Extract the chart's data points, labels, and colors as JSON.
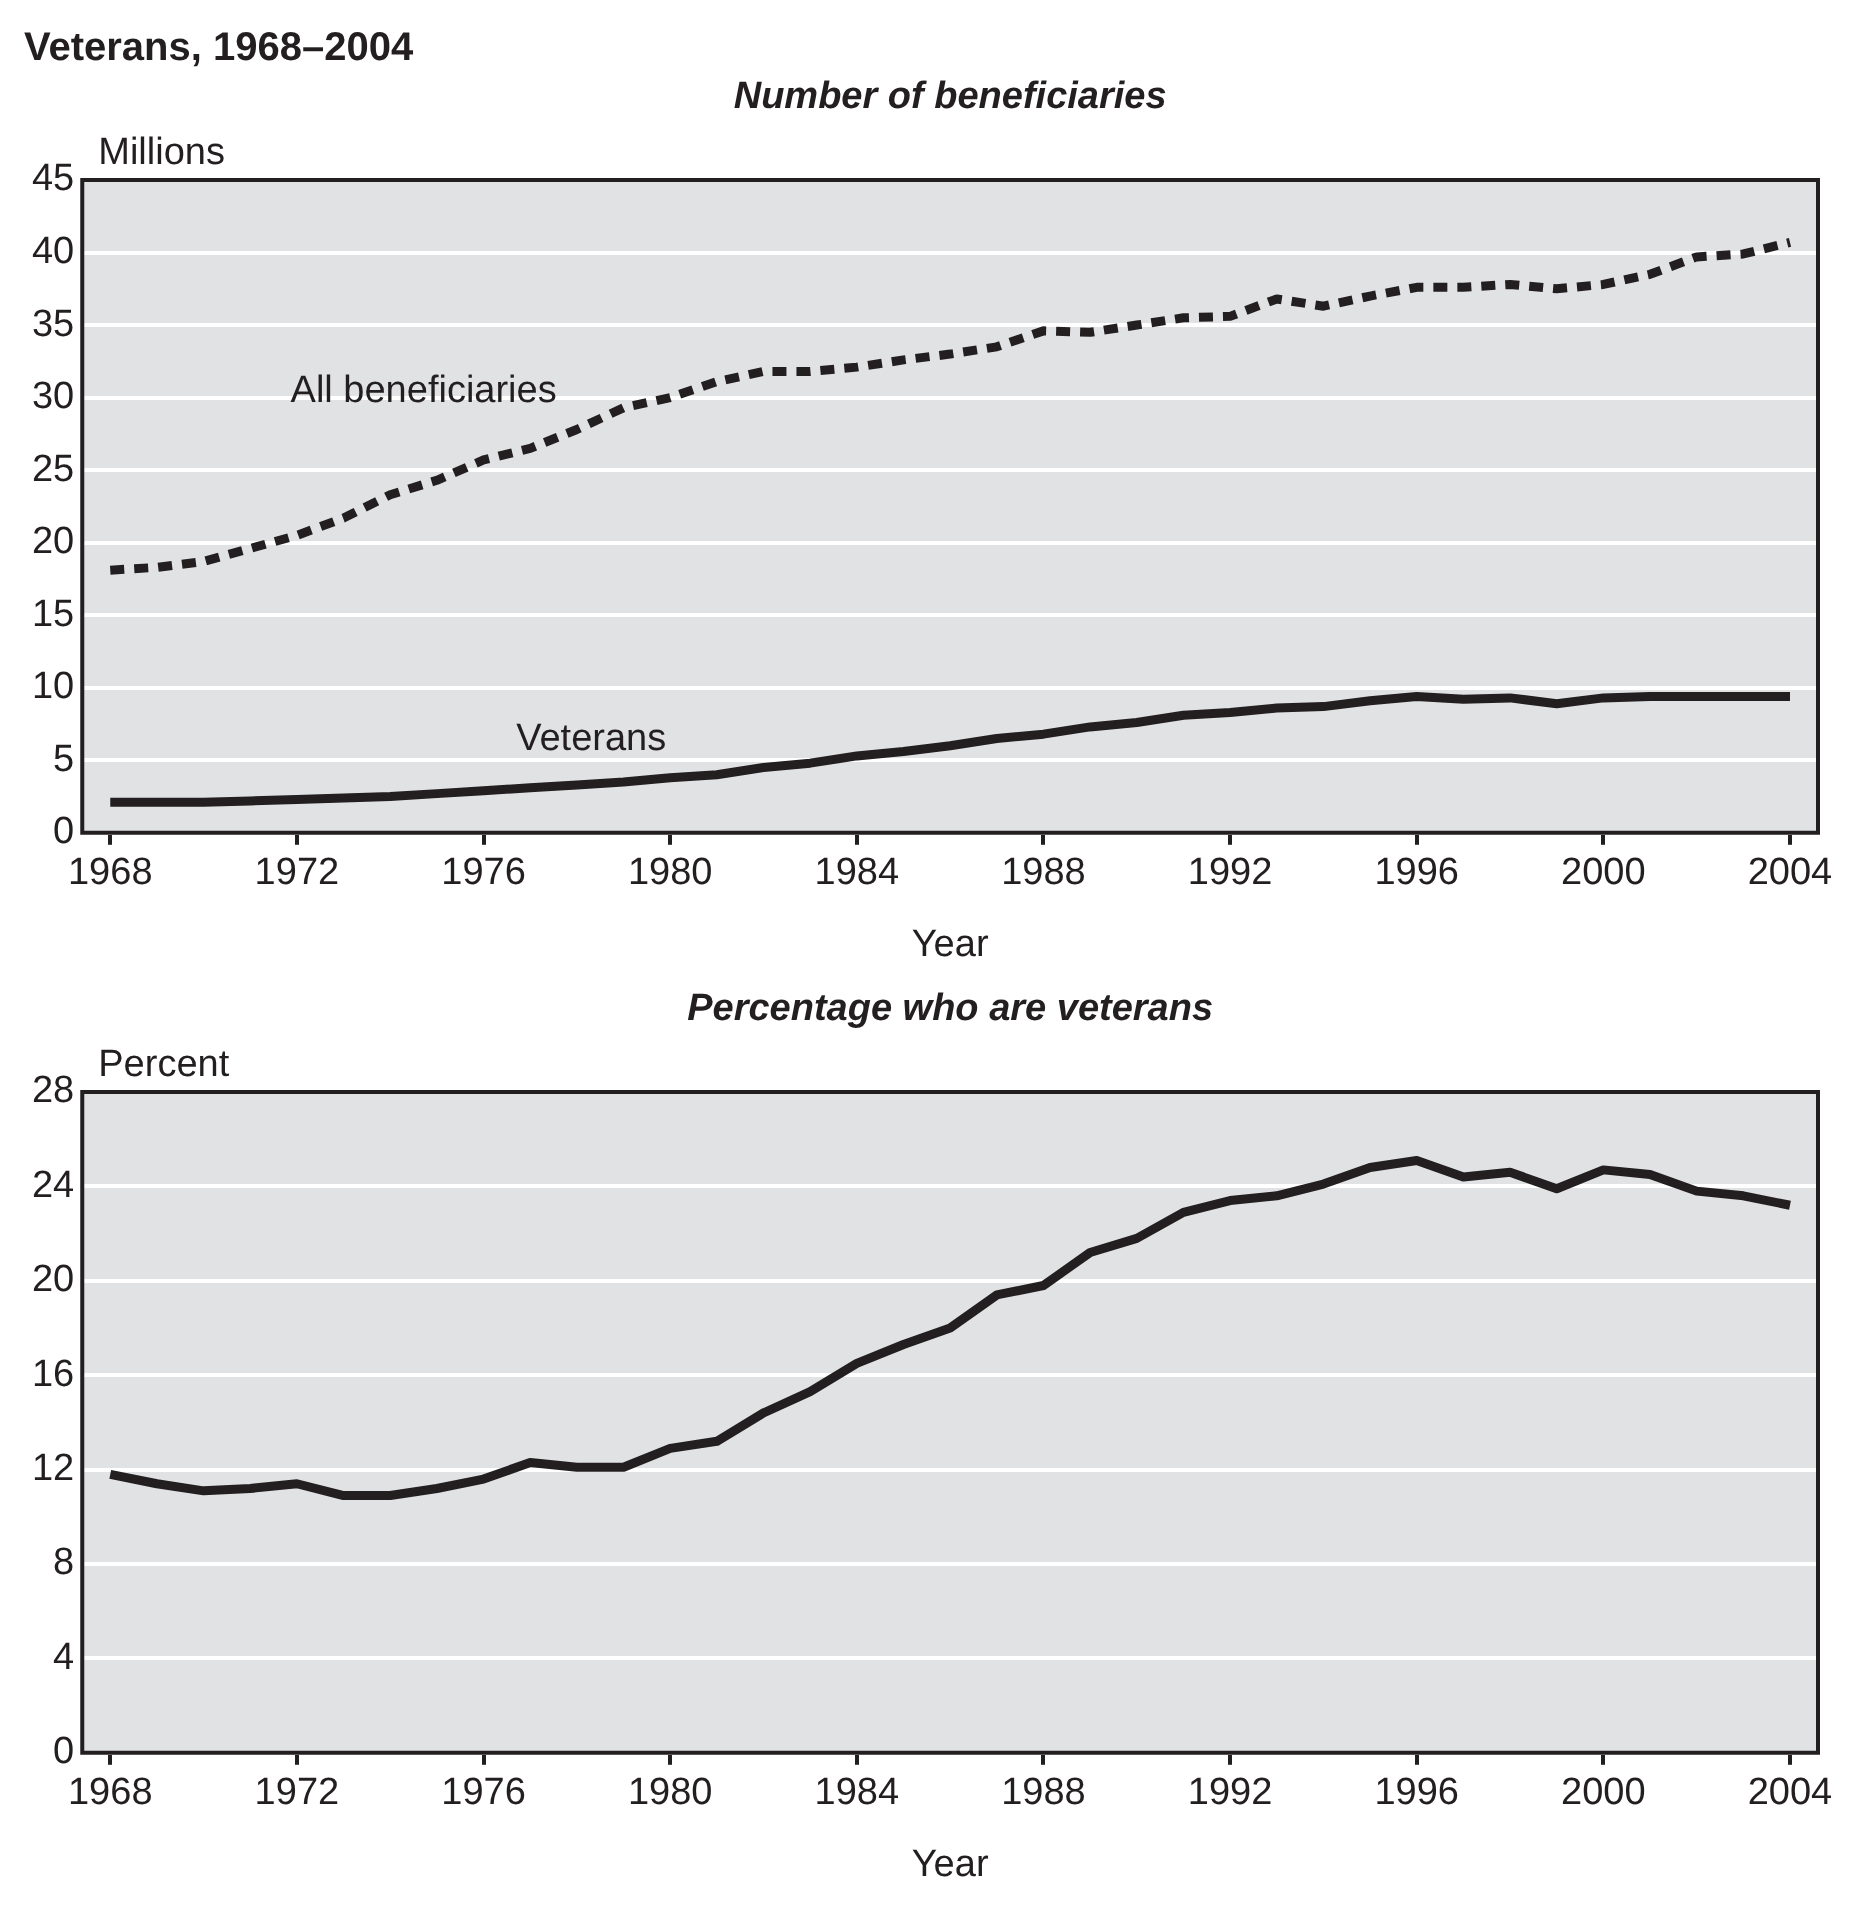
{
  "chart_data": [
    {
      "type": "line",
      "title": "Veterans, 1968–2004",
      "subtitle": "Number of beneficiaries",
      "xlabel": "Year",
      "ylabel": "Millions",
      "x": [
        1968,
        1969,
        1970,
        1971,
        1972,
        1973,
        1974,
        1975,
        1976,
        1977,
        1978,
        1979,
        1980,
        1981,
        1982,
        1983,
        1984,
        1985,
        1986,
        1987,
        1988,
        1989,
        1990,
        1991,
        1992,
        1993,
        1994,
        1995,
        1996,
        1997,
        1998,
        1999,
        2000,
        2001,
        2002,
        2003,
        2004
      ],
      "series": [
        {
          "name": "All beneficiaries",
          "color": "#231f20",
          "line_style": "dashed",
          "values": [
            18.1,
            18.3,
            18.7,
            19.6,
            20.5,
            21.7,
            23.3,
            24.3,
            25.7,
            26.5,
            27.8,
            29.3,
            30.0,
            31.1,
            31.8,
            31.8,
            32.1,
            32.6,
            33.0,
            33.5,
            34.6,
            34.5,
            35.0,
            35.5,
            35.6,
            36.8,
            36.3,
            37.0,
            37.6,
            37.6,
            37.8,
            37.5,
            37.8,
            38.5,
            39.7,
            39.9,
            40.7
          ]
        },
        {
          "name": "Veterans",
          "color": "#231f20",
          "line_style": "solid",
          "values": [
            2.1,
            2.1,
            2.1,
            2.2,
            2.3,
            2.4,
            2.5,
            2.7,
            2.9,
            3.1,
            3.3,
            3.5,
            3.8,
            4.0,
            4.5,
            4.8,
            5.3,
            5.6,
            6.0,
            6.5,
            6.8,
            7.3,
            7.6,
            8.1,
            8.3,
            8.6,
            8.7,
            9.1,
            9.4,
            9.2,
            9.3,
            8.9,
            9.3,
            9.4,
            9.4,
            9.4,
            9.4
          ]
        }
      ],
      "xlim": [
        1967.4,
        2004.6
      ],
      "xticks": [
        1968,
        1972,
        1976,
        1980,
        1984,
        1988,
        1992,
        1996,
        2000,
        2004
      ],
      "ylim": [
        0,
        45
      ],
      "yticks": [
        0,
        5,
        10,
        15,
        20,
        25,
        30,
        35,
        40,
        45
      ],
      "grid": "y",
      "legend": false,
      "marker": "none"
    },
    {
      "type": "line",
      "subtitle": "Percentage who are veterans",
      "xlabel": "Year",
      "ylabel": "Percent",
      "x": [
        1968,
        1969,
        1970,
        1971,
        1972,
        1973,
        1974,
        1975,
        1976,
        1977,
        1978,
        1979,
        1980,
        1981,
        1982,
        1983,
        1984,
        1985,
        1986,
        1987,
        1988,
        1989,
        1990,
        1991,
        1992,
        1993,
        1994,
        1995,
        1996,
        1997,
        1998,
        1999,
        2000,
        2001,
        2002,
        2003,
        2004
      ],
      "series": [
        {
          "color": "#231f20",
          "line_style": "solid",
          "values": [
            11.8,
            11.4,
            11.1,
            11.2,
            11.4,
            10.9,
            10.9,
            11.2,
            11.6,
            12.3,
            12.1,
            12.1,
            12.9,
            13.2,
            14.4,
            15.3,
            16.5,
            17.3,
            18.0,
            19.4,
            19.8,
            21.2,
            21.8,
            22.9,
            23.4,
            23.6,
            24.1,
            24.8,
            25.1,
            24.4,
            24.6,
            23.9,
            24.7,
            24.5,
            23.8,
            23.6,
            23.2
          ]
        }
      ],
      "xlim": [
        1967.4,
        2004.6
      ],
      "xticks": [
        1968,
        1972,
        1976,
        1980,
        1984,
        1988,
        1992,
        1996,
        2000,
        2004
      ],
      "ylim": [
        0,
        28
      ],
      "yticks": [
        0,
        4,
        8,
        12,
        16,
        20,
        24,
        28
      ],
      "grid": "y",
      "legend": false,
      "marker": "none"
    }
  ]
}
